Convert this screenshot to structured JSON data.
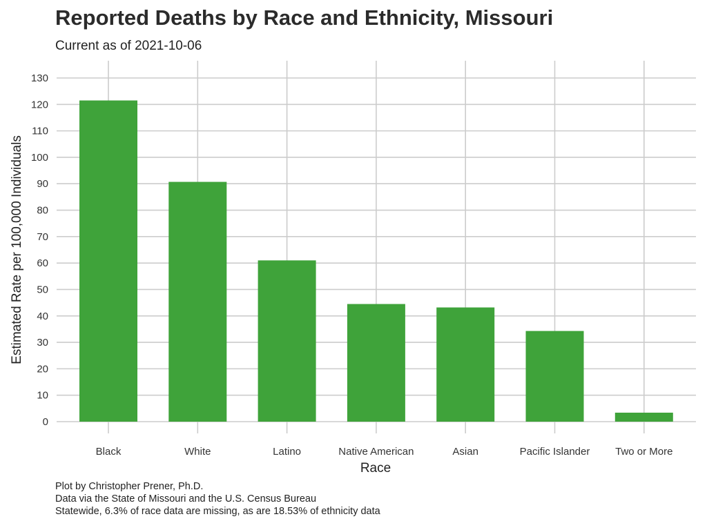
{
  "chart_data": {
    "type": "bar",
    "title": "Reported Deaths by Race and Ethnicity, Missouri",
    "subtitle": "Current as of 2021-10-06",
    "xlabel": "Race",
    "ylabel": "Estimated Rate per 100,000 Individuals",
    "categories": [
      "Black",
      "White",
      "Latino",
      "Native American",
      "Asian",
      "Pacific Islander",
      "Two or More"
    ],
    "values": [
      121.5,
      90.7,
      61.0,
      44.5,
      43.2,
      34.3,
      3.4
    ],
    "ylim": [
      0,
      130
    ],
    "yticks": [
      0,
      10,
      20,
      30,
      40,
      50,
      60,
      70,
      80,
      90,
      100,
      110,
      120,
      130
    ],
    "bar_color": "#3fa33a",
    "grid_color": "#cccccc",
    "grid": true,
    "legend": "none",
    "caption": [
      "Plot by Christopher Prener, Ph.D.",
      "Data via the State of Missouri and the U.S. Census Bureau",
      "Statewide, 6.3% of race data are missing, as are 18.53% of ethnicity data"
    ]
  }
}
